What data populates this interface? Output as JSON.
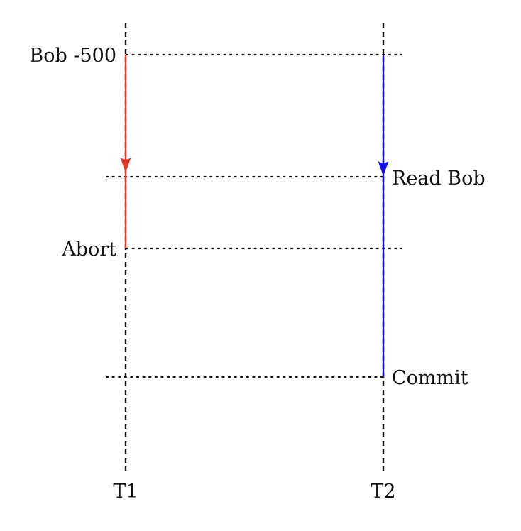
{
  "timelines": [
    {
      "id": "t1",
      "label": "T1"
    },
    {
      "id": "t2",
      "label": "T2"
    }
  ],
  "events": {
    "bob_minus_500": "Bob -500",
    "read_bob": "Read Bob",
    "abort": "Abort",
    "commit": "Commit"
  },
  "colors": {
    "t1_arrow": "#e0392b",
    "t2_arrow": "#1010e0",
    "timeline": "#111111",
    "guide": "#111111"
  }
}
